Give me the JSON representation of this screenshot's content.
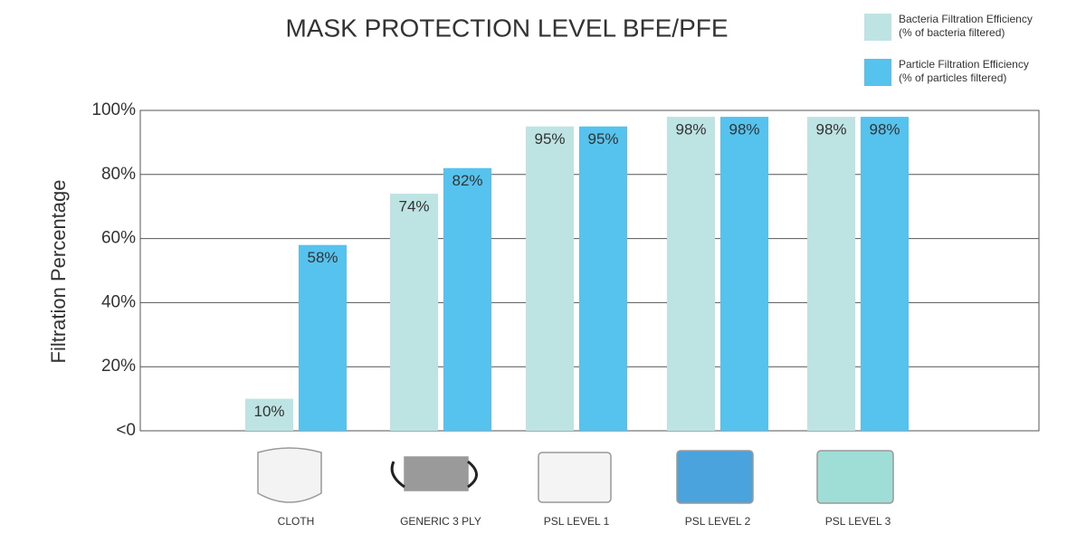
{
  "chart_data": {
    "type": "bar",
    "title": "MASK PROTECTION LEVEL BFE/PFE",
    "y_axis_label": "Filtration Percentage",
    "categories": [
      "CLOTH",
      "GENERIC 3 PLY",
      "PSL LEVEL 1",
      "PSL LEVEL 2",
      "PSL LEVEL 3"
    ],
    "series": [
      {
        "name": "Bacteria Filtration Efficiency",
        "description": "(% of bacteria filtered)",
        "color": "#bde3e3",
        "values": [
          10,
          74,
          95,
          98,
          98
        ],
        "value_labels": [
          "10%",
          "74%",
          "95%",
          "98%",
          "98%"
        ]
      },
      {
        "name": "Particle Filtration Efficiency",
        "description": "(% of particles filtered)",
        "color": "#56c3ef",
        "values": [
          58,
          82,
          95,
          98,
          98
        ],
        "value_labels": [
          "58%",
          "82%",
          "95%",
          "98%",
          "98%"
        ]
      }
    ],
    "ylim": [
      0,
      100
    ],
    "yticks": [
      {
        "value": 0,
        "label": "<0"
      },
      {
        "value": 20,
        "label": "20%"
      },
      {
        "value": 40,
        "label": "40%"
      },
      {
        "value": 60,
        "label": "60%"
      },
      {
        "value": 80,
        "label": "80%"
      },
      {
        "value": 100,
        "label": "100%"
      }
    ],
    "grid": true,
    "legend": "top-right"
  }
}
